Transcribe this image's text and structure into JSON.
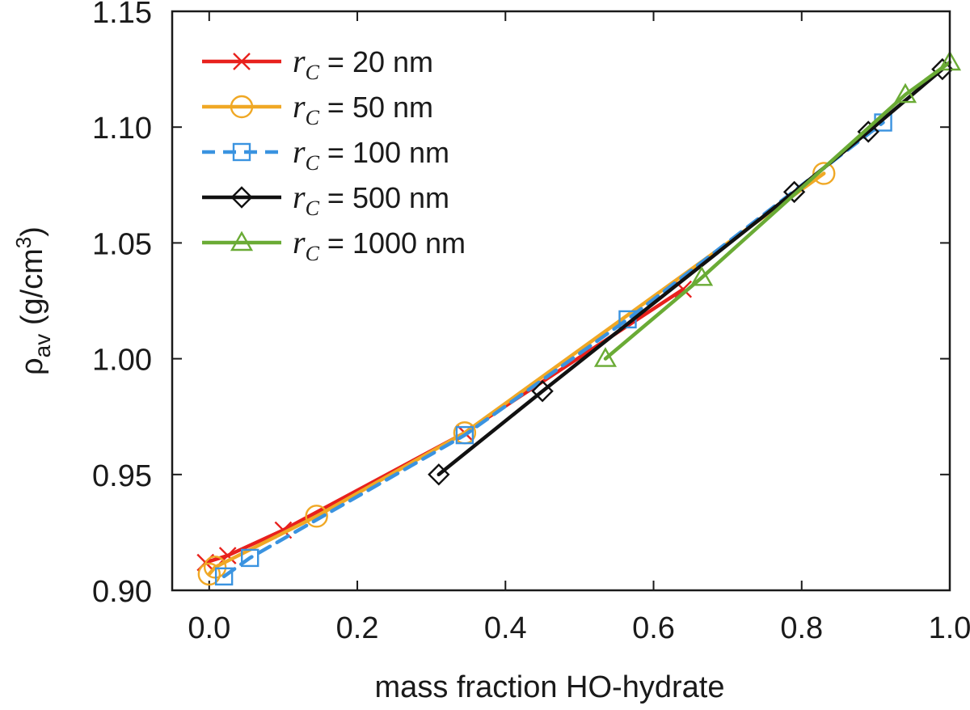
{
  "chart_data": {
    "type": "line",
    "title": "",
    "xlabel": "mass fraction HO-hydrate",
    "ylabel": {
      "symbol": "ρ",
      "subscript": "av",
      "unit_prefix": " (g/cm",
      "unit_sup": "3",
      "unit_suffix": ")"
    },
    "xlim": [
      -0.05,
      1.0
    ],
    "ylim": [
      0.9,
      1.15
    ],
    "xticks": [
      0.0,
      0.2,
      0.4,
      0.6,
      0.8,
      1.0
    ],
    "xtick_labels": [
      "0.0",
      "0.2",
      "0.4",
      "0.6",
      "0.8",
      "1.0"
    ],
    "yticks": [
      0.9,
      0.95,
      1.0,
      1.05,
      1.1,
      1.15
    ],
    "ytick_labels": [
      "0.90",
      "0.95",
      "1.00",
      "1.05",
      "1.10",
      "1.15"
    ],
    "legend_position": "top-left",
    "series": [
      {
        "name": "r_C = 20 nm",
        "legend_symbol": "r",
        "legend_sub": "C",
        "legend_text": "= 20 nm",
        "color": "#e8211d",
        "marker": "x",
        "dash": "solid",
        "x": [
          -0.005,
          0.025,
          0.1,
          0.345,
          0.64
        ],
        "y": [
          0.912,
          0.915,
          0.926,
          0.968,
          1.03
        ]
      },
      {
        "name": "r_C = 50 nm",
        "legend_symbol": "r",
        "legend_sub": "C",
        "legend_text": "= 50 nm",
        "color": "#f0a825",
        "marker": "circle",
        "dash": "solid",
        "x": [
          0.0,
          0.008,
          0.145,
          0.345,
          0.83
        ],
        "y": [
          0.907,
          0.91,
          0.932,
          0.968,
          1.08
        ]
      },
      {
        "name": "r_C = 100 nm",
        "legend_symbol": "r",
        "legend_sub": "C",
        "legend_text": "= 100 nm",
        "color": "#3a93e0",
        "marker": "square",
        "dash": "dashed",
        "x": [
          0.02,
          0.055,
          0.345,
          0.565,
          0.91
        ],
        "y": [
          0.906,
          0.914,
          0.967,
          1.017,
          1.102
        ]
      },
      {
        "name": "r_C = 500 nm",
        "legend_symbol": "r",
        "legend_sub": "C",
        "legend_text": "= 500 nm",
        "color": "#111111",
        "marker": "diamond",
        "dash": "solid",
        "x": [
          0.31,
          0.45,
          0.79,
          0.89,
          0.99
        ],
        "y": [
          0.95,
          0.986,
          1.072,
          1.098,
          1.125
        ]
      },
      {
        "name": "r_C = 1000 nm",
        "legend_symbol": "r",
        "legend_sub": "C",
        "legend_text": "= 1000 nm",
        "color": "#6aab35",
        "marker": "triangle",
        "dash": "solid",
        "x": [
          0.535,
          0.665,
          0.94,
          1.0
        ],
        "y": [
          1.0,
          1.035,
          1.114,
          1.128
        ]
      }
    ]
  }
}
